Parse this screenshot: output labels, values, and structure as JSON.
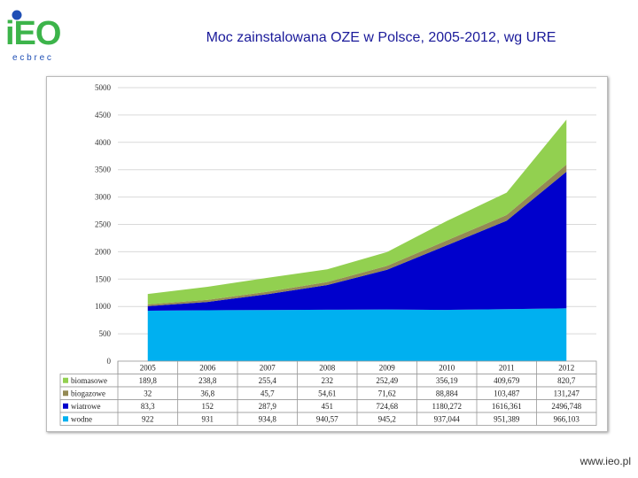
{
  "logo": {
    "main_text": "iEO",
    "sub_text": "e c b r e c"
  },
  "title": "Moc zainstalowana OZE w Polsce, 2005-2012, wg URE",
  "footer": "www.ieo.pl",
  "colors": {
    "biomasowe": "#92d050",
    "biogazowe": "#948a54",
    "wiatrowe": "#0000cc",
    "wodne": "#00b0f0",
    "title": "#1a1a9a",
    "logo_green": "#3cb44a",
    "logo_blue": "#1f4fb5"
  },
  "chart_data": {
    "type": "area",
    "stacked": true,
    "title": "",
    "xlabel": "",
    "ylabel": "",
    "ylim": [
      0,
      5000
    ],
    "yticks": [
      0,
      500,
      1000,
      1500,
      2000,
      2500,
      3000,
      3500,
      4000,
      4500,
      5000
    ],
    "grid": true,
    "categories": [
      "2005",
      "2006",
      "2007",
      "2008",
      "2009",
      "2010",
      "2011",
      "2012"
    ],
    "series": [
      {
        "name": "biomasowe",
        "values": [
          189.8,
          238.8,
          255.4,
          232,
          252.49,
          356.19,
          409.679,
          820.7
        ],
        "labels": [
          "189,8",
          "238,8",
          "255,4",
          "232",
          "252,49",
          "356,19",
          "409,679",
          "820,7"
        ]
      },
      {
        "name": "biogazowe",
        "values": [
          32,
          36.8,
          45.7,
          54.61,
          71.62,
          88.884,
          103.487,
          131.247
        ],
        "labels": [
          "32",
          "36,8",
          "45,7",
          "54,61",
          "71,62",
          "88,884",
          "103,487",
          "131,247"
        ]
      },
      {
        "name": "wiatrowe",
        "values": [
          83.3,
          152,
          287.9,
          451,
          724.68,
          1180.272,
          1616.361,
          2496.748
        ],
        "labels": [
          "83,3",
          "152",
          "287,9",
          "451",
          "724,68",
          "1180,272",
          "1616,361",
          "2496,748"
        ]
      },
      {
        "name": "wodne",
        "values": [
          922,
          931,
          934.8,
          940.57,
          945.2,
          937.044,
          951.389,
          966.103
        ],
        "labels": [
          "922",
          "931",
          "934,8",
          "940,57",
          "945,2",
          "937,044",
          "951,389",
          "966,103"
        ]
      }
    ]
  }
}
